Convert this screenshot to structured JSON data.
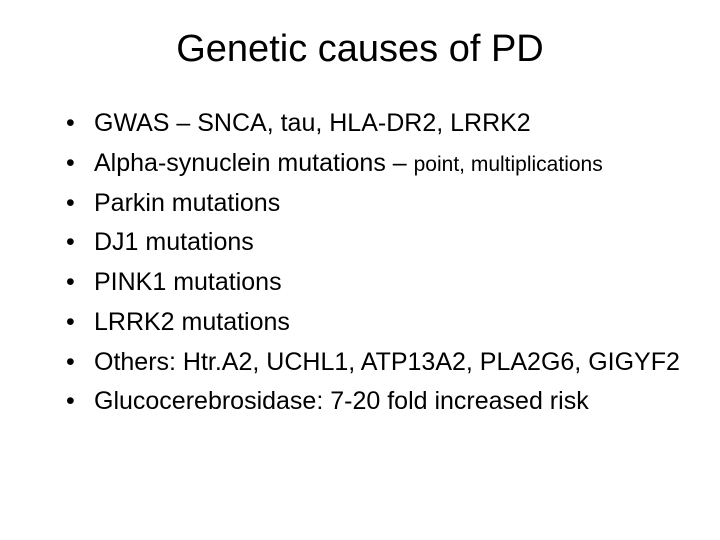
{
  "title": "Genetic causes of PD",
  "bullets": [
    {
      "main": "GWAS – SNCA, tau, HLA-DR2, LRRK2",
      "sub": null
    },
    {
      "main": "Alpha-synuclein mutations – ",
      "sub": "point, multiplications"
    },
    {
      "main": "Parkin mutations",
      "sub": null
    },
    {
      "main": "DJ1 mutations",
      "sub": null
    },
    {
      "main": "PINK1 mutations",
      "sub": null
    },
    {
      "main": "LRRK2 mutations",
      "sub": null
    },
    {
      "main": "Others: Htr.A2, UCHL1, ATP13A2, PLA2G6, GIGYF2",
      "sub": null
    },
    {
      "main": "Glucocerebrosidase: 7-20 fold increased risk",
      "sub": null
    }
  ],
  "style": {
    "background_color": "#ffffff",
    "text_color": "#000000",
    "title_fontsize": 38,
    "bullet_fontsize": 25,
    "sub_fontsize": 21,
    "font_family": "Arial"
  }
}
